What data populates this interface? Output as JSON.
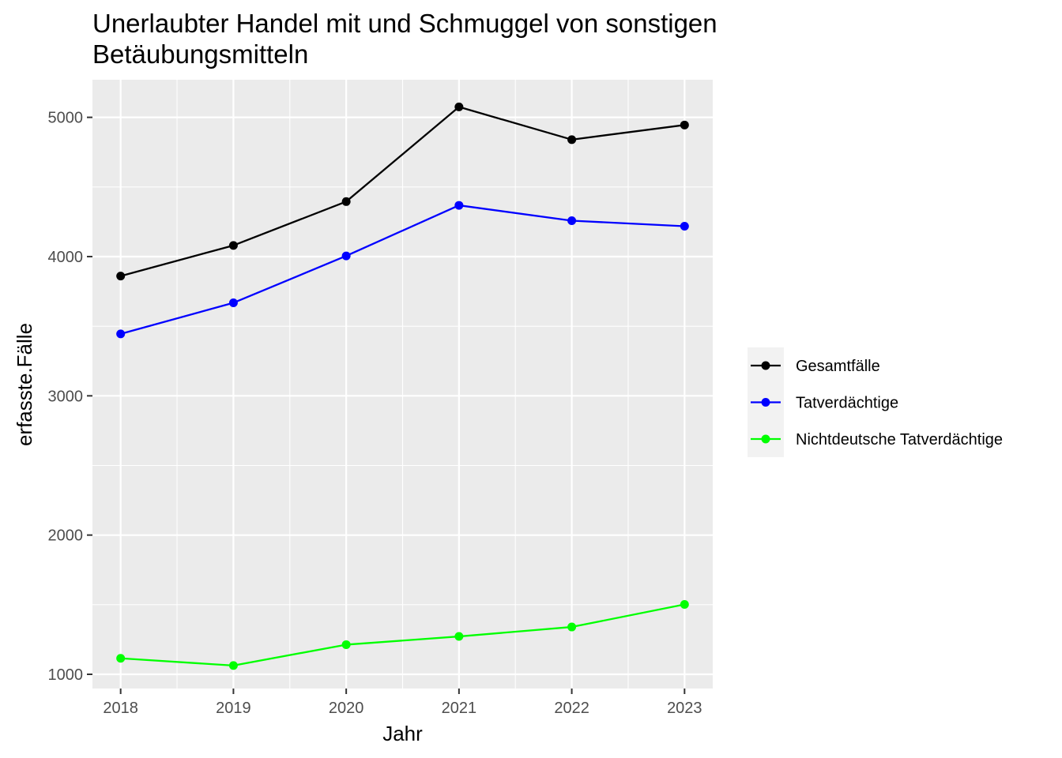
{
  "chart_data": {
    "type": "line",
    "title_lines": [
      "Unerlaubter Handel mit und Schmuggel von sonstigen",
      "Betäubungsmitteln"
    ],
    "xlabel": "Jahr",
    "ylabel": "erfasste.Fälle",
    "x": [
      2018,
      2019,
      2020,
      2021,
      2022,
      2023
    ],
    "x_tick_labels": [
      "2018",
      "2019",
      "2020",
      "2021",
      "2022",
      "2023"
    ],
    "xlim": [
      2017.75,
      2023.25
    ],
    "ylim": [
      898,
      5270
    ],
    "y_ticks": [
      1000,
      2000,
      3000,
      4000,
      5000
    ],
    "y_tick_labels": [
      "1000",
      "2000",
      "3000",
      "4000",
      "5000"
    ],
    "grid": true,
    "legend_position": "right",
    "series": [
      {
        "name": "Gesamtfälle",
        "color": "#000000",
        "values": [
          3860,
          4080,
          4395,
          5075,
          4840,
          4945
        ]
      },
      {
        "name": "Tatverdächtige",
        "color": "#0000ff",
        "values": [
          3445,
          3668,
          4005,
          4368,
          4258,
          4218
        ]
      },
      {
        "name": "Nichtdeutsche Tatverdächtige",
        "color": "#00ff00",
        "values": [
          1115,
          1063,
          1213,
          1272,
          1340,
          1502
        ]
      }
    ]
  }
}
